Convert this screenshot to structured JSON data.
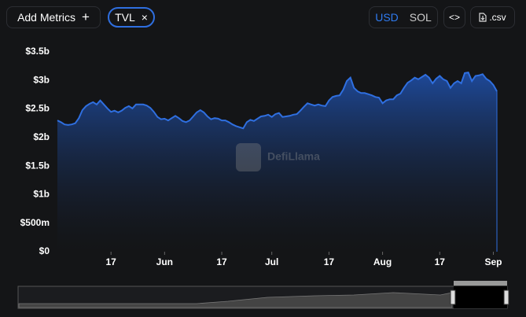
{
  "ui": {
    "add_metrics": "Add Metrics",
    "add_icon": "+",
    "metric": "TVL",
    "remove_icon": "×",
    "currency_usd": "USD",
    "currency_sol": "SOL",
    "embed": "<>",
    "csv": ".csv",
    "watermark": "DefiLlama"
  },
  "chart_data": {
    "type": "area",
    "color": "#2f6fe0",
    "categories": [
      null,
      null,
      null,
      null,
      null,
      null,
      null,
      null,
      null,
      null,
      null,
      null,
      null,
      null,
      null,
      "17",
      null,
      null,
      null,
      null,
      null,
      null,
      null,
      null,
      null,
      null,
      null,
      null,
      null,
      null,
      "Jun",
      null,
      null,
      null,
      null,
      null,
      null,
      null,
      null,
      null,
      null,
      null,
      null,
      null,
      null,
      null,
      "17",
      null,
      null,
      null,
      null,
      null,
      null,
      null,
      null,
      null,
      null,
      null,
      null,
      null,
      "Jul",
      null,
      null,
      null,
      null,
      null,
      null,
      null,
      null,
      null,
      null,
      null,
      null,
      null,
      null,
      null,
      "17",
      null,
      null,
      null,
      null,
      null,
      null,
      null,
      null,
      null,
      null,
      null,
      null,
      null,
      null,
      "Aug",
      null,
      null,
      null,
      null,
      null,
      null,
      null,
      null,
      null,
      null,
      null,
      null,
      null,
      null,
      null,
      "17",
      null,
      null,
      null,
      null,
      null,
      null,
      null,
      null,
      null,
      null,
      null,
      null,
      null,
      null,
      "Sep",
      null
    ],
    "values": [
      2300000000.0,
      2270000000.0,
      2230000000.0,
      2220000000.0,
      2230000000.0,
      2250000000.0,
      2340000000.0,
      2480000000.0,
      2550000000.0,
      2590000000.0,
      2620000000.0,
      2580000000.0,
      2650000000.0,
      2580000000.0,
      2510000000.0,
      2450000000.0,
      2470000000.0,
      2440000000.0,
      2470000000.0,
      2520000000.0,
      2550000000.0,
      2510000000.0,
      2580000000.0,
      2580000000.0,
      2580000000.0,
      2560000000.0,
      2520000000.0,
      2450000000.0,
      2360000000.0,
      2320000000.0,
      2330000000.0,
      2300000000.0,
      2340000000.0,
      2380000000.0,
      2340000000.0,
      2290000000.0,
      2270000000.0,
      2300000000.0,
      2370000000.0,
      2440000000.0,
      2480000000.0,
      2440000000.0,
      2370000000.0,
      2320000000.0,
      2340000000.0,
      2330000000.0,
      2300000000.0,
      2300000000.0,
      2270000000.0,
      2230000000.0,
      2200000000.0,
      2180000000.0,
      2160000000.0,
      2270000000.0,
      2310000000.0,
      2290000000.0,
      2330000000.0,
      2370000000.0,
      2380000000.0,
      2400000000.0,
      2360000000.0,
      2410000000.0,
      2430000000.0,
      2360000000.0,
      2370000000.0,
      2380000000.0,
      2400000000.0,
      2410000000.0,
      2470000000.0,
      2540000000.0,
      2600000000.0,
      2580000000.0,
      2560000000.0,
      2580000000.0,
      2560000000.0,
      2550000000.0,
      2650000000.0,
      2710000000.0,
      2730000000.0,
      2740000000.0,
      2840000000.0,
      2990000000.0,
      3050000000.0,
      2870000000.0,
      2810000000.0,
      2780000000.0,
      2780000000.0,
      2760000000.0,
      2740000000.0,
      2710000000.0,
      2700000000.0,
      2600000000.0,
      2650000000.0,
      2670000000.0,
      2670000000.0,
      2740000000.0,
      2770000000.0,
      2870000000.0,
      2960000000.0,
      3000000000.0,
      3050000000.0,
      3020000000.0,
      3060000000.0,
      3100000000.0,
      3050000000.0,
      2950000000.0,
      3030000000.0,
      3080000000.0,
      3020000000.0,
      2990000000.0,
      2870000000.0,
      2950000000.0,
      2990000000.0,
      2950000000.0,
      3130000000.0,
      3140000000.0,
      2990000000.0,
      3080000000.0,
      3090000000.0,
      3110000000.0,
      3030000000.0,
      2990000000.0,
      2920000000.0,
      2810000000.0
    ],
    "ylim": [
      0,
      3500000000.0
    ],
    "yticks": [
      {
        "value": 0,
        "label": "$0"
      },
      {
        "value": 500000000.0,
        "label": "$500m"
      },
      {
        "value": 1000000000.0,
        "label": "$1b"
      },
      {
        "value": 1500000000.0,
        "label": "$1.5b"
      },
      {
        "value": 2000000000.0,
        "label": "$2b"
      },
      {
        "value": 2500000000.0,
        "label": "$2.5b"
      },
      {
        "value": 3000000000.0,
        "label": "$3b"
      },
      {
        "value": 3500000000.0,
        "label": "$3.5b"
      }
    ],
    "grid": false
  }
}
